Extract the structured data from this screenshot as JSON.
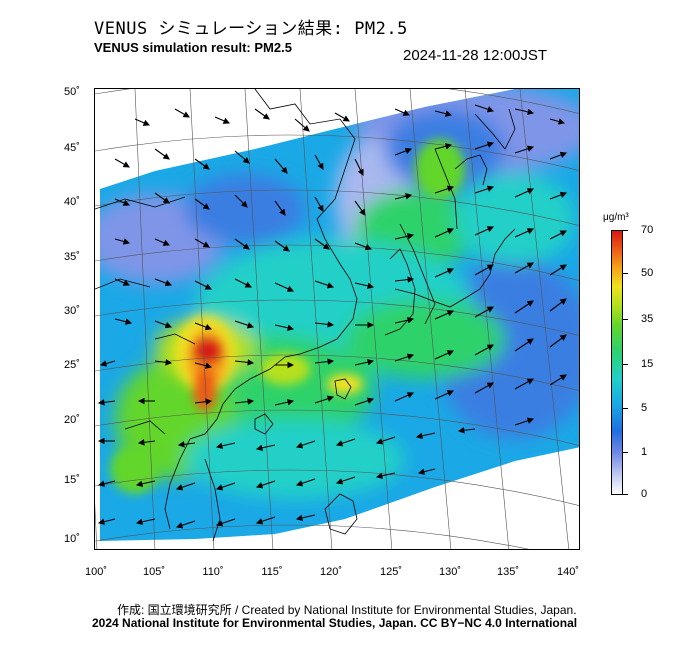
{
  "title_jp": "VENUS シミュレーション結果: PM2.5",
  "title_en": "VENUS simulation result: PM2.5",
  "timestamp": "2024-11-28 12:00JST",
  "lat_ticks": [
    "50˚",
    "45˚",
    "40˚",
    "35˚",
    "30˚",
    "25˚",
    "20˚",
    "15˚",
    "10˚"
  ],
  "lon_ticks": [
    "100˚",
    "105˚",
    "110˚",
    "115˚",
    "120˚",
    "125˚",
    "130˚",
    "135˚",
    "140˚"
  ],
  "colorbar": {
    "unit": "μg/m³",
    "labels": [
      "70",
      "50",
      "35",
      "15",
      "5",
      "1",
      "0"
    ],
    "colors": [
      "#ffffff",
      "#6f86e6",
      "#1aa8e6",
      "#2ed26a",
      "#f0e020",
      "#ee5a16",
      "#d81a12"
    ]
  },
  "credit_line1": "作成: 国立環境研究所 / Created by National Institute for Environmental Studies, Japan.",
  "credit_line2": "2024 National Institute for Environmental Studies, Japan. CC BY−NC 4.0 International"
}
